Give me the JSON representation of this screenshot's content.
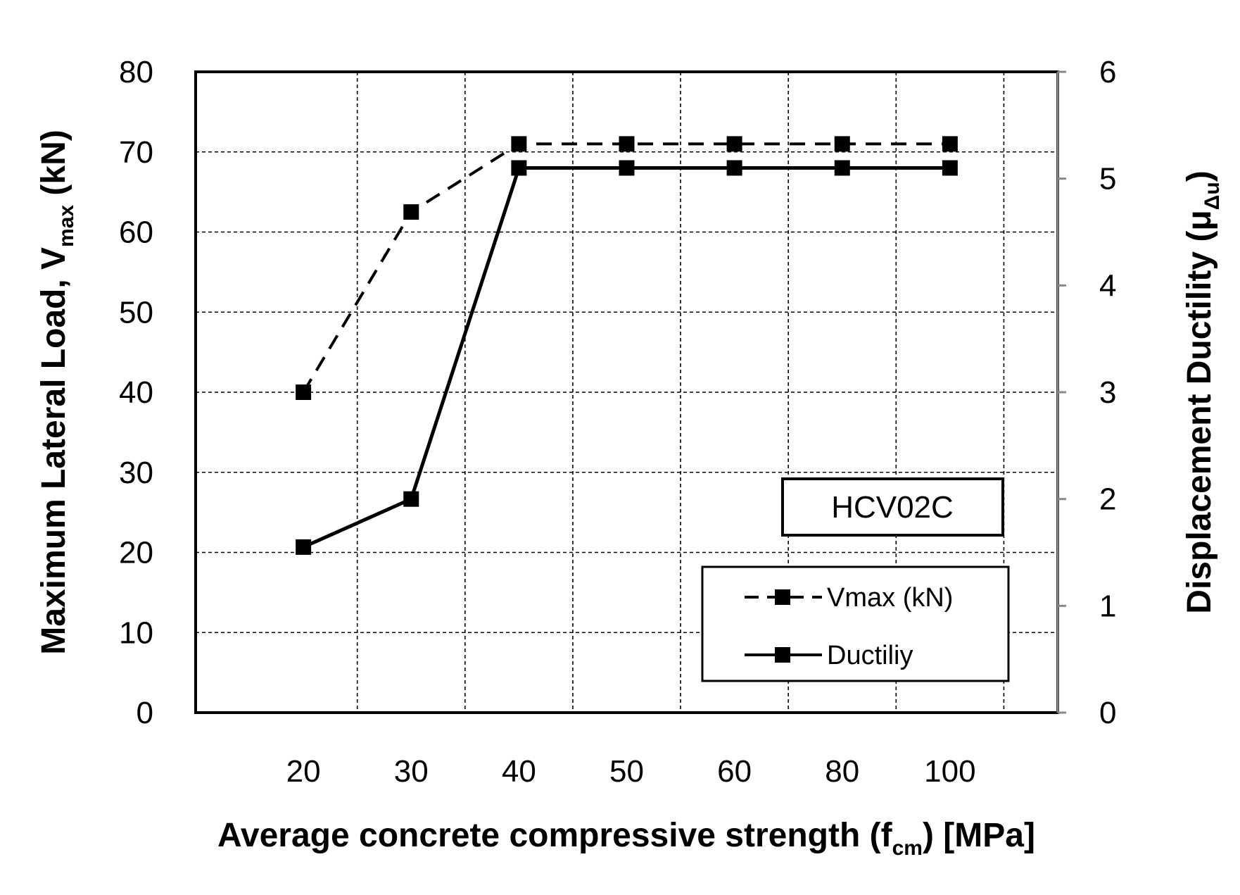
{
  "chart_data": {
    "type": "line",
    "title": "",
    "categories": [
      "20",
      "30",
      "40",
      "50",
      "60",
      "80",
      "100"
    ],
    "series": [
      {
        "name": "Vmax (kN)",
        "axis": "left",
        "style": "dashed",
        "marker": "square",
        "values": [
          40,
          62.5,
          71,
          71,
          71,
          71,
          71
        ]
      },
      {
        "name": "Ductiliy",
        "axis": "right",
        "style": "solid",
        "marker": "square",
        "values": [
          1.55,
          2.0,
          5.1,
          5.1,
          5.1,
          5.1,
          5.1
        ]
      }
    ],
    "xlabel": {
      "main": "Average concrete compressive strength (f",
      "sub": "cm",
      "tail": ") [MPa]"
    },
    "ylabel_left": {
      "main": "Maximum Lateral Load, V",
      "sub": "max",
      "tail": " (kN)"
    },
    "ylabel_right": {
      "main": "Displacement Ductility (μ",
      "sub": "Δu",
      "tail": ")"
    },
    "ylim_left": [
      0,
      80
    ],
    "yticks_left": [
      "0",
      "10",
      "20",
      "30",
      "40",
      "50",
      "60",
      "70",
      "80"
    ],
    "ylim_right": [
      0,
      6
    ],
    "yticks_right": [
      "0",
      "1",
      "2",
      "3",
      "4",
      "5",
      "6"
    ],
    "grid": true,
    "legend_position": "bottom-right",
    "annotation": "HCV02C"
  }
}
